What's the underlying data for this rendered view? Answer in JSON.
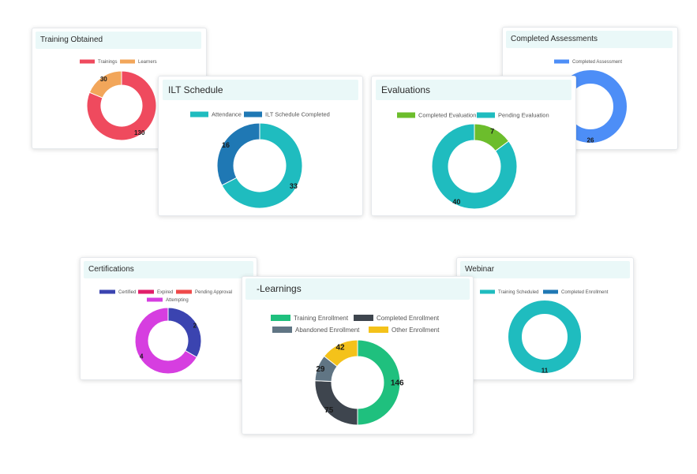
{
  "chart_data": [
    {
      "id": "training",
      "type": "donut",
      "title": "Training Obtained",
      "legend": [
        {
          "name": "Trainings",
          "color": "#ef4a5e"
        },
        {
          "name": "Learners",
          "color": "#f2a65a"
        }
      ],
      "slices": [
        {
          "name": "Trainings",
          "value": 130,
          "color": "#ef4a5e"
        },
        {
          "name": "Learners",
          "value": 30,
          "color": "#f2a65a"
        }
      ]
    },
    {
      "id": "assess",
      "type": "donut",
      "title": "Completed Assessments",
      "legend": [
        {
          "name": "Completed Assessment",
          "color": "#4d8ef7"
        }
      ],
      "slices": [
        {
          "name": "Completed Assessment",
          "value": 26,
          "color": "#4d8ef7"
        }
      ]
    },
    {
      "id": "ilt",
      "type": "donut",
      "title": "ILT Schedule",
      "legend": [
        {
          "name": "Attendance",
          "color": "#1fbcbf"
        },
        {
          "name": "ILT Schedule Completed",
          "color": "#1f78b4"
        }
      ],
      "slices": [
        {
          "name": "Attendance",
          "value": 33,
          "color": "#1fbcbf"
        },
        {
          "name": "ILT Schedule Completed",
          "value": 16,
          "color": "#1f78b4"
        }
      ]
    },
    {
      "id": "eval",
      "type": "donut",
      "title": "Evaluations",
      "legend": [
        {
          "name": "Completed Evaluation",
          "color": "#6cbd2c"
        },
        {
          "name": "Pending Evaluation",
          "color": "#1fbcbf"
        }
      ],
      "slices": [
        {
          "name": "Completed Evaluation",
          "value": 7,
          "color": "#6cbd2c"
        },
        {
          "name": "Pending Evaluation",
          "value": 40,
          "color": "#1fbcbf"
        }
      ]
    },
    {
      "id": "cert",
      "type": "donut",
      "title": "Certifications",
      "legend": [
        {
          "name": "Certified",
          "color": "#3b44b0"
        },
        {
          "name": "Expired",
          "color": "#e01e6a"
        },
        {
          "name": "Pending Approval",
          "color": "#ef4a4a"
        },
        {
          "name": "Attempting",
          "color": "#d63ee0"
        }
      ],
      "slices": [
        {
          "name": "Certified",
          "value": 2,
          "color": "#3b44b0"
        },
        {
          "name": "Attempting",
          "value": 4,
          "color": "#d63ee0"
        }
      ]
    },
    {
      "id": "webinar",
      "type": "donut",
      "title": "Webinar",
      "legend": [
        {
          "name": "Training Scheduled",
          "color": "#1fbcbf"
        },
        {
          "name": "Completed Enrollment",
          "color": "#1f78b4"
        }
      ],
      "slices": [
        {
          "name": "Training Scheduled",
          "value": 11,
          "color": "#1fbcbf"
        }
      ]
    },
    {
      "id": "elearn",
      "type": "donut",
      "title": "-Learnings",
      "legend": [
        {
          "name": "Training Enrollment",
          "color": "#1fc07e"
        },
        {
          "name": "Completed Enrollment",
          "color": "#3e454e"
        },
        {
          "name": "Abandoned Enrollment",
          "color": "#607584"
        },
        {
          "name": "Other Enrollment",
          "color": "#f4c21a"
        }
      ],
      "slices": [
        {
          "name": "Training Enrollment",
          "value": 146,
          "color": "#1fc07e"
        },
        {
          "name": "Completed Enrollment",
          "value": 75,
          "color": "#3e454e"
        },
        {
          "name": "Abandoned Enrollment",
          "value": 29,
          "color": "#607584"
        },
        {
          "name": "Other Enrollment",
          "value": 42,
          "color": "#f4c21a"
        }
      ]
    }
  ]
}
